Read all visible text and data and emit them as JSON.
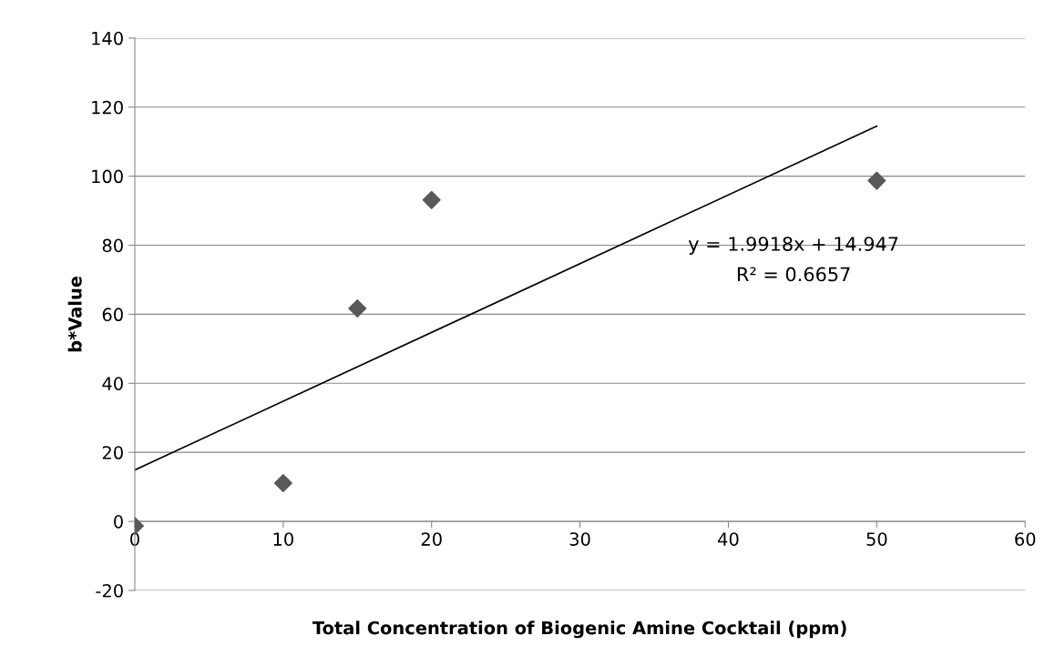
{
  "chart_data": {
    "type": "scatter",
    "xlabel": "Total Concentration of Biogenic Amine Cocktail (ppm)",
    "ylabel": "b*Value",
    "x": [
      0,
      10,
      15,
      20,
      50
    ],
    "series": [
      {
        "color": "#595959",
        "marker": "diamond",
        "values": [
          -1.3,
          11.1,
          61.7,
          93.1,
          98.7
        ]
      },
      {
        "type": "line",
        "color": "#000000",
        "marker": "none",
        "x": [
          0,
          50
        ],
        "values": [
          14.9,
          114.5
        ]
      }
    ],
    "grid": "y",
    "xlim": [
      0,
      60
    ],
    "xticks": [
      0,
      10,
      20,
      30,
      40,
      50,
      60
    ],
    "ylim": [
      -20,
      140
    ],
    "yticks": [
      -20,
      0,
      20,
      40,
      60,
      80,
      100,
      120,
      140
    ],
    "annotations": [
      "y = 1.9918x + 14.947",
      "R² = 0.6657"
    ]
  }
}
